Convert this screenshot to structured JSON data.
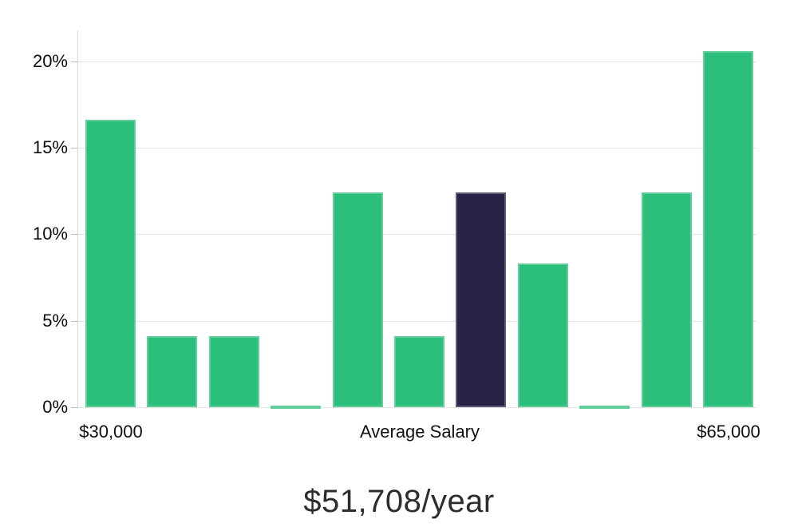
{
  "chart_data": {
    "type": "bar",
    "title": "$51,708/year",
    "xlabel": "",
    "ylabel": "",
    "grid": true,
    "legend": "none",
    "ylim": [
      0,
      21.8
    ],
    "y_tick_labels": [
      "0%",
      "5%",
      "10%",
      "15%",
      "20%"
    ],
    "y_tick_values": [
      0,
      5,
      10,
      15,
      20
    ],
    "values": [
      16.6,
      4.1,
      4.1,
      0.1,
      12.4,
      4.1,
      12.4,
      8.3,
      0.1,
      12.4,
      20.6
    ],
    "highlight_index": 6,
    "x_tick_labels": [
      {
        "label": "$30,000",
        "bar_index": 0
      },
      {
        "label": "Average Salary",
        "bar_index": 5
      },
      {
        "label": "$65,000",
        "bar_index": 10
      }
    ],
    "bar_color": "#2cbe7b",
    "highlight_color": "#272448",
    "grid_color": "#e3e3e3"
  }
}
